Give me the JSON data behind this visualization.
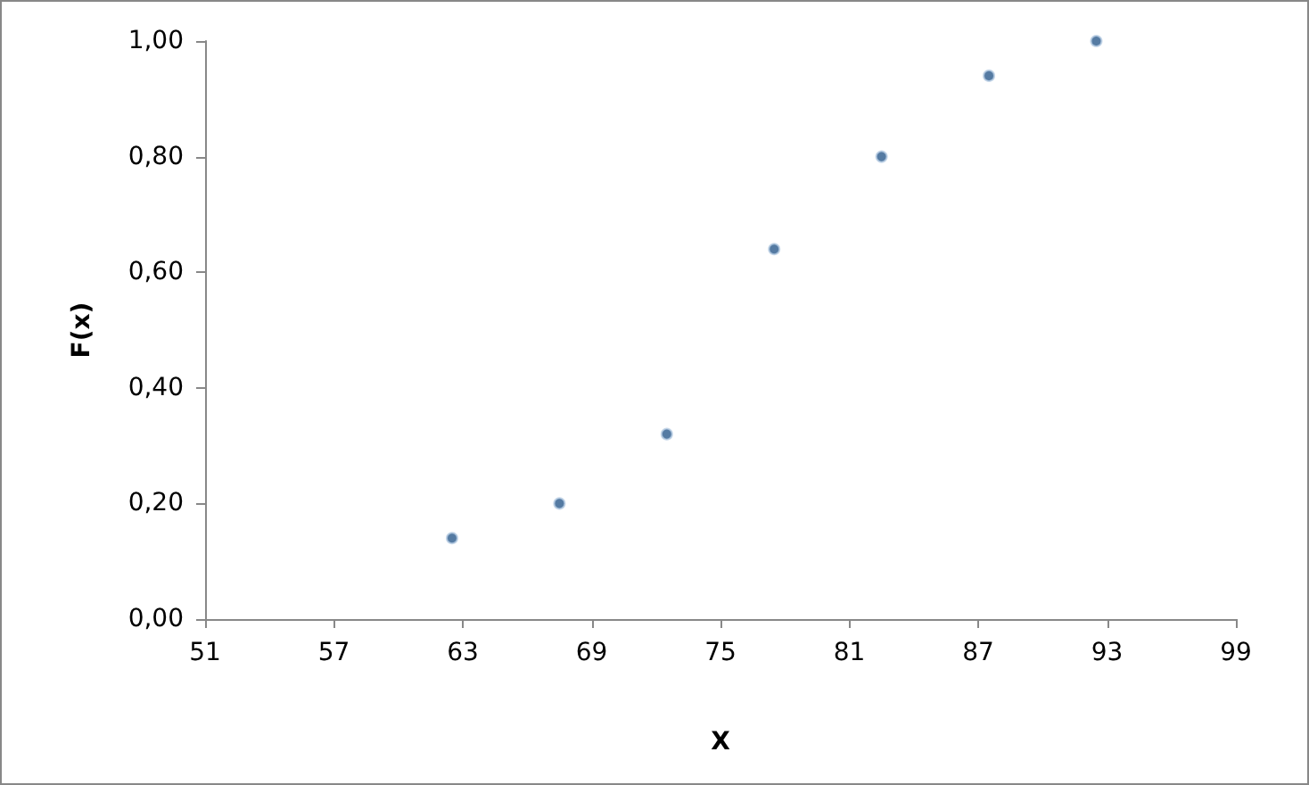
{
  "chart_data": {
    "type": "scatter",
    "xlabel": "X",
    "ylabel": "F(x)",
    "x": [
      62.5,
      67.5,
      72.5,
      77.5,
      82.5,
      87.5,
      92.5
    ],
    "series": [
      {
        "color": "#2b5a8c",
        "values": [
          0.14,
          0.2,
          0.32,
          0.64,
          0.8,
          0.94,
          1.0
        ]
      }
    ],
    "xlim": [
      51,
      99
    ],
    "xticks": [
      51,
      57,
      63,
      69,
      75,
      81,
      87,
      93,
      99
    ],
    "ylim": [
      0,
      1
    ],
    "yticks": [
      {
        "value": 0,
        "label": "0,00"
      },
      {
        "value": 0.2,
        "label": "0,20"
      },
      {
        "value": 0.4,
        "label": "0,40"
      },
      {
        "value": 0.6,
        "label": "0,60"
      },
      {
        "value": 0.8,
        "label": "0,80"
      },
      {
        "value": 1,
        "label": "1,00"
      }
    ],
    "grid": false,
    "marker": "circle"
  }
}
